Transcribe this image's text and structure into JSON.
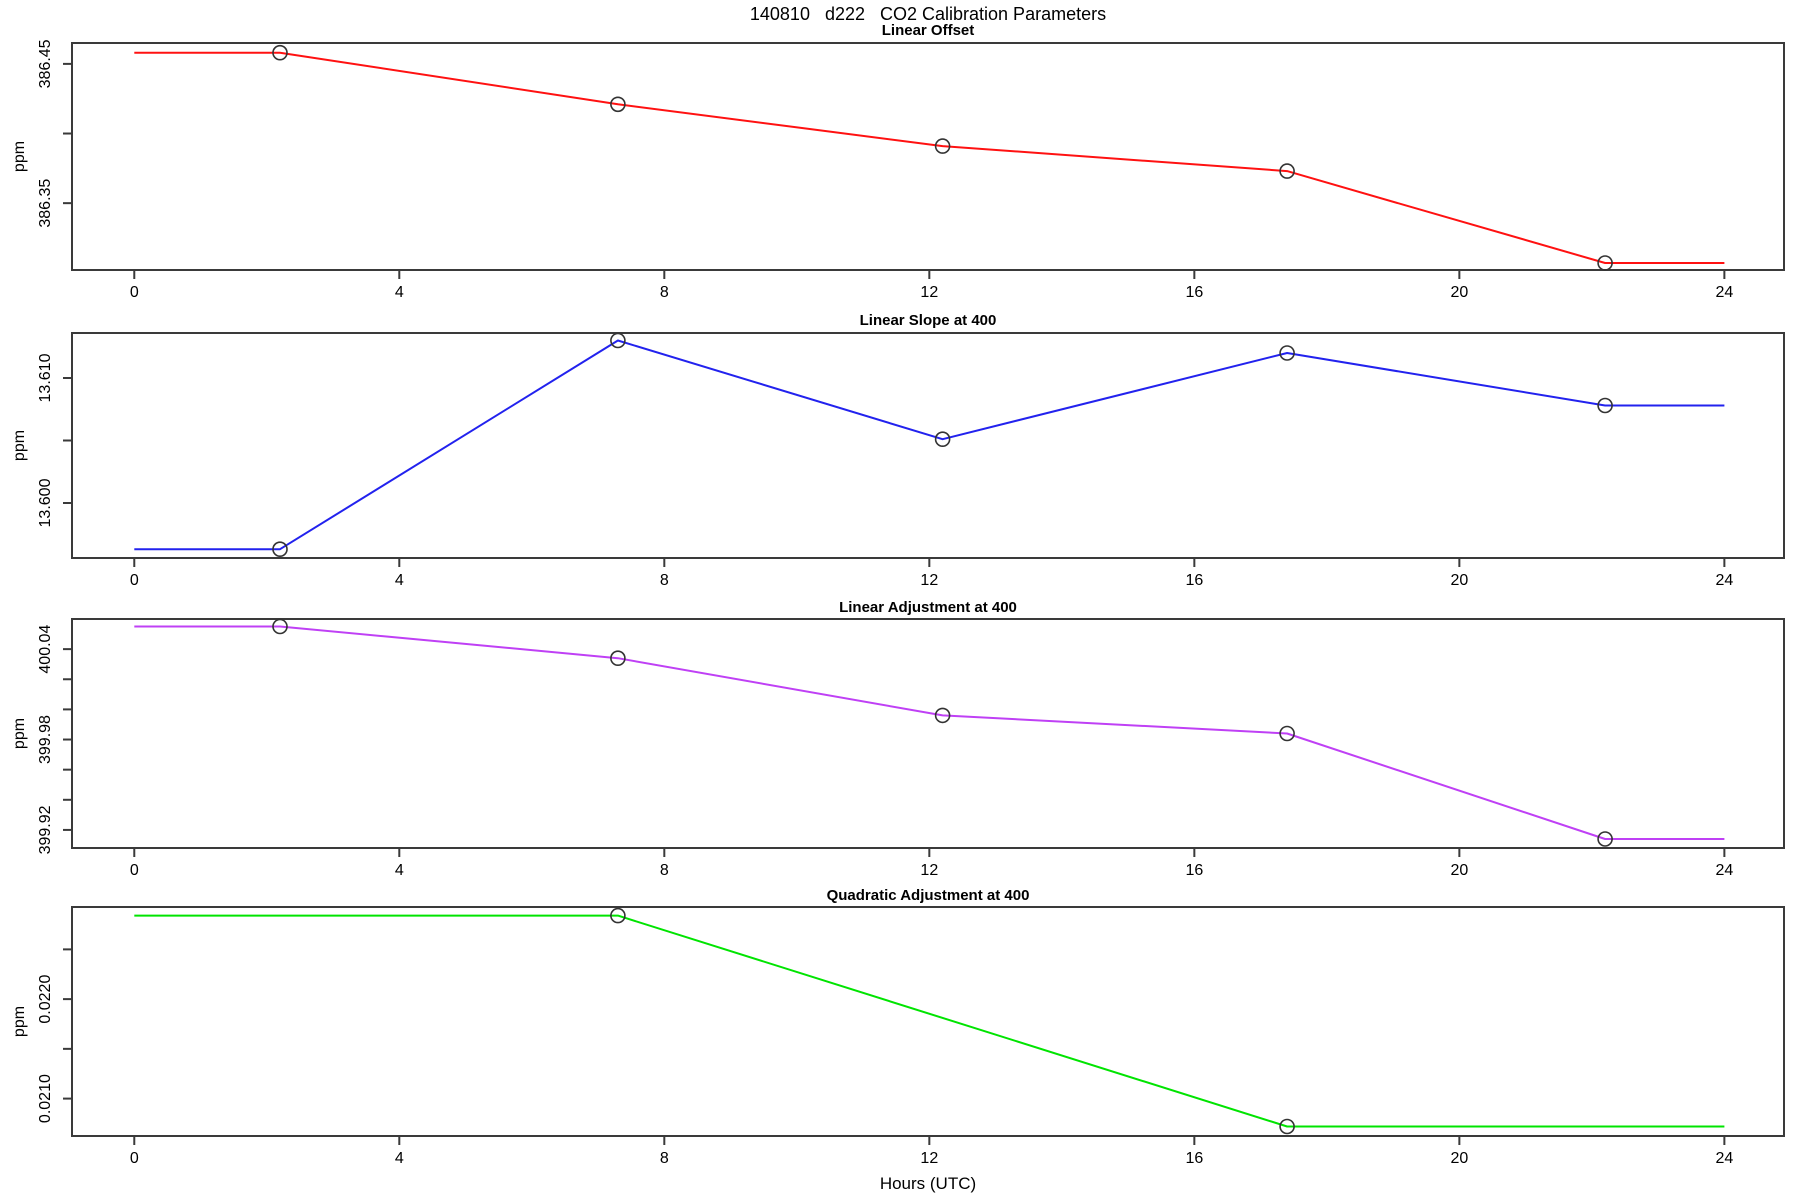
{
  "page_title": "140810   d222   CO2 Calibration Parameters",
  "xlabel": "Hours (UTC)",
  "axis_color": "#3a3a3a",
  "marker_color": "#333333",
  "chart_data": [
    {
      "type": "line",
      "title": "Linear Offset",
      "ylabel": "ppm",
      "color": "#ff1111",
      "x": [
        2.2,
        7.3,
        12.2,
        17.4,
        22.2
      ],
      "y": [
        386.458,
        386.421,
        386.391,
        386.373,
        386.307
      ],
      "ylim": [
        386.302,
        386.465
      ],
      "yticks": [
        {
          "v": 386.45,
          "label": "386.45"
        },
        {
          "v": 386.4,
          "label": ""
        },
        {
          "v": 386.35,
          "label": "386.35"
        }
      ],
      "xlim": [
        -0.94,
        24.9
      ],
      "x_ticks": [
        0,
        4,
        8,
        12,
        16,
        20,
        24
      ],
      "legend": "none",
      "grid": false,
      "line_extends_flat_to_x_edges": [
        0,
        24
      ]
    },
    {
      "type": "line",
      "title": "Linear Slope at 400",
      "ylabel": "ppm",
      "color": "#2222ee",
      "x": [
        2.2,
        7.3,
        12.2,
        17.4,
        22.2
      ],
      "y": [
        13.5963,
        13.613,
        13.6051,
        13.612,
        13.6078
      ],
      "ylim": [
        13.5956,
        13.6136
      ],
      "yticks": [
        {
          "v": 13.61,
          "label": "13.610"
        },
        {
          "v": 13.605,
          "label": ""
        },
        {
          "v": 13.6,
          "label": "13.600"
        }
      ],
      "xlim": [
        -0.94,
        24.9
      ],
      "x_ticks": [
        0,
        4,
        8,
        12,
        16,
        20,
        24
      ],
      "legend": "none",
      "grid": false,
      "line_extends_flat_to_x_edges": [
        0,
        24
      ]
    },
    {
      "type": "line",
      "title": "Linear Adjustment at 400",
      "ylabel": "ppm",
      "color": "#bf40f5",
      "x": [
        2.2,
        7.3,
        12.2,
        17.4,
        22.2
      ],
      "y": [
        400.055,
        400.034,
        399.996,
        399.984,
        399.914
      ],
      "ylim": [
        399.908,
        400.06
      ],
      "yticks": [
        {
          "v": 400.04,
          "label": "400.04"
        },
        {
          "v": 400.02,
          "label": ""
        },
        {
          "v": 400.0,
          "label": ""
        },
        {
          "v": 399.98,
          "label": "399.98"
        },
        {
          "v": 399.96,
          "label": ""
        },
        {
          "v": 399.94,
          "label": ""
        },
        {
          "v": 399.92,
          "label": "399.92"
        }
      ],
      "xlim": [
        -0.94,
        24.9
      ],
      "x_ticks": [
        0,
        4,
        8,
        12,
        16,
        20,
        24
      ],
      "legend": "none",
      "grid": false,
      "line_extends_flat_to_x_edges": [
        0,
        24
      ]
    },
    {
      "type": "line",
      "title": "Quadratic Adjustment at 400",
      "ylabel": "ppm",
      "color": "#00e400",
      "x": [
        7.3,
        17.4
      ],
      "y": [
        0.02284,
        0.02072
      ],
      "ylim": [
        0.020624,
        0.022926
      ],
      "yticks": [
        {
          "v": 0.0225,
          "label": ""
        },
        {
          "v": 0.022,
          "label": "0.0220"
        },
        {
          "v": 0.0215,
          "label": ""
        },
        {
          "v": 0.021,
          "label": "0.0210"
        }
      ],
      "xlim": [
        -0.94,
        24.9
      ],
      "x_ticks": [
        0,
        4,
        8,
        12,
        16,
        20,
        24
      ],
      "legend": "none",
      "grid": false,
      "line_extends_flat_to_x_edges": [
        0,
        24
      ]
    }
  ]
}
